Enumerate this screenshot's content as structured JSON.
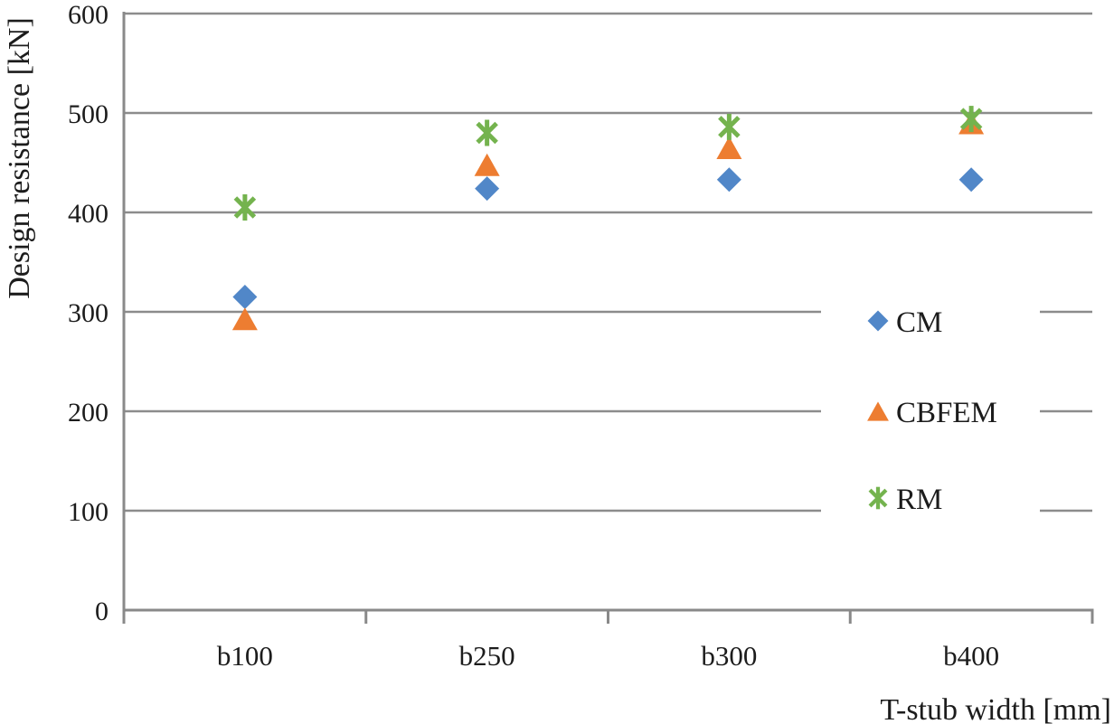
{
  "chart_data": {
    "type": "scatter",
    "title": "",
    "xlabel": "T-stub width [mm]",
    "ylabel": "Design resistance [kN]",
    "categories": [
      "b100",
      "b250",
      "b300",
      "b400"
    ],
    "series": [
      {
        "name": "CM",
        "marker": "diamond",
        "color": "#5187C8",
        "values": [
          315,
          424,
          433,
          433
        ]
      },
      {
        "name": "CBFEM",
        "marker": "triangle",
        "color": "#ED7D31",
        "values": [
          293,
          448,
          465,
          490
        ]
      },
      {
        "name": "RM",
        "marker": "asterisk",
        "color": "#74B34E",
        "values": [
          405,
          480,
          486,
          494
        ]
      }
    ],
    "ylim": [
      0,
      600
    ],
    "yticks": [
      0,
      100,
      200,
      300,
      400,
      500,
      600
    ],
    "grid": true,
    "legend_position": "middle-right",
    "legend_entries": [
      "CM",
      "CBFEM",
      "RM"
    ],
    "gridline_color": "#8C8C8C",
    "axis_color": "#898989",
    "text_color": "#1C1C1C",
    "background": "#FFFFFF"
  }
}
